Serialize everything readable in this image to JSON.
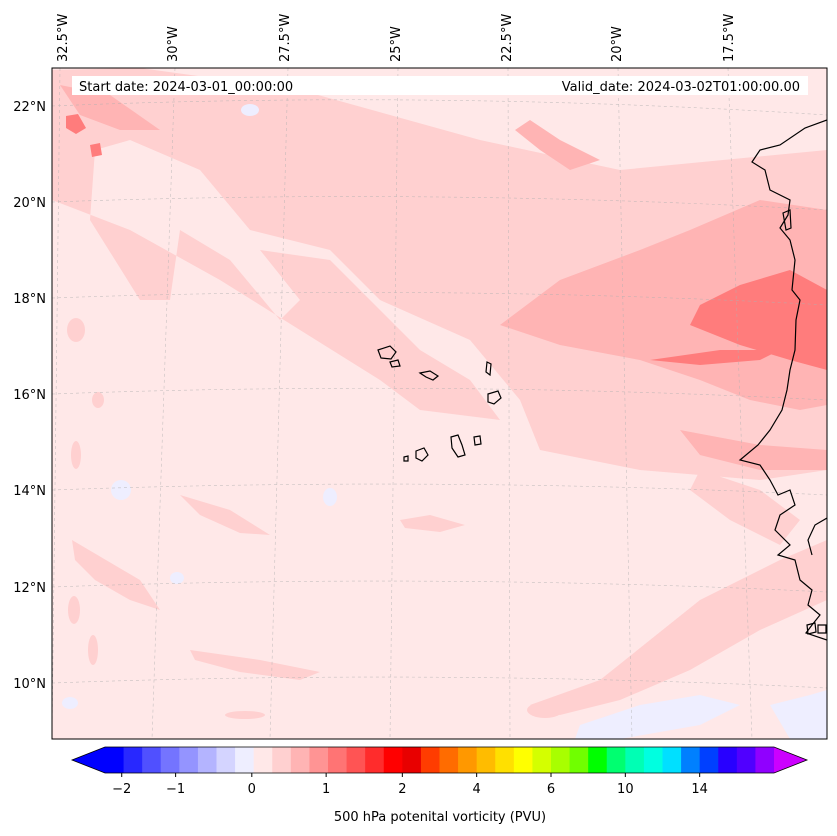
{
  "map": {
    "start_date_label": "Start date: 2024-03-01_00:00:00",
    "valid_date_label": "Valid_date: 2024-03-02T01:00:00.00",
    "lon_labels": [
      "32.5°W",
      "30°W",
      "27.5°W",
      "25°W",
      "22.5°W",
      "20°W",
      "17.5°W"
    ],
    "lat_labels": [
      "22°N",
      "20°N",
      "18°N",
      "16°N",
      "14°N",
      "12°N",
      "10°N"
    ],
    "field_colors": {
      "background": "#ffe8e8",
      "band_light": "#ffd0d0",
      "band_mid": "#ffb4b4",
      "band_strong": "#ff7c7c",
      "negative_patch": "#eeeeff",
      "coastline": "#000000"
    }
  },
  "colorbar": {
    "label": "500 hPa potenital vorticity (PVU)",
    "tick_labels": [
      "−2",
      "−1",
      "0",
      "1",
      "2",
      "4",
      "6",
      "10",
      "14"
    ],
    "colors": [
      "#0000ff",
      "#2828ff",
      "#5050ff",
      "#7474ff",
      "#9494ff",
      "#b4b4ff",
      "#d4d4ff",
      "#eeeeff",
      "#ffe8e8",
      "#ffd0d0",
      "#ffb4b4",
      "#ff9494",
      "#ff7474",
      "#ff5454",
      "#ff2c2c",
      "#ff0000",
      "#e80000",
      "#ff3c00",
      "#ff6c00",
      "#ff9800",
      "#ffbc00",
      "#ffe000",
      "#ffff00",
      "#d4ff00",
      "#a8ff00",
      "#70ff00",
      "#00ff00",
      "#00ff70",
      "#00ffb4",
      "#00ffe0",
      "#00e0ff",
      "#0080ff",
      "#0040ff",
      "#2800ff",
      "#5000ff",
      "#9000ff"
    ],
    "extend_low_color": "#0000ff",
    "extend_high_color": "#cc00ff"
  }
}
